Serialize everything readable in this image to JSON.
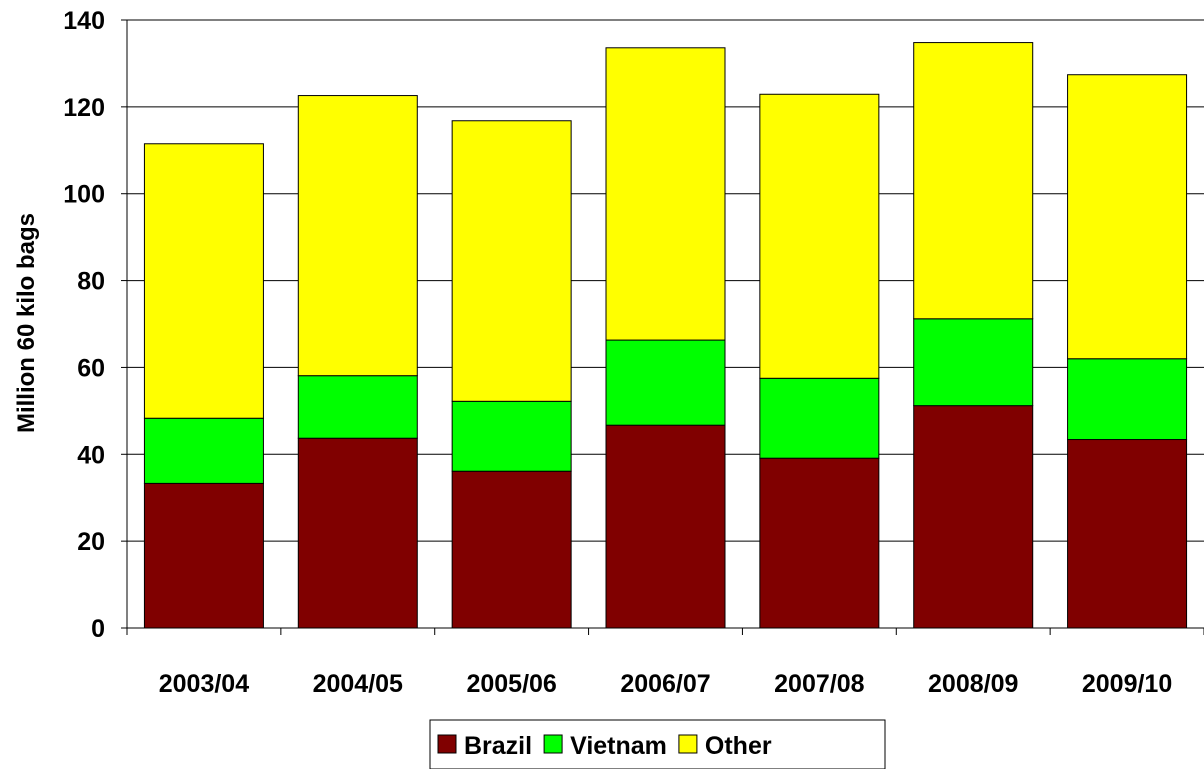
{
  "chart_data": {
    "type": "bar",
    "stacked": true,
    "title": "",
    "xlabel": "",
    "ylabel": "Million 60 kilo bags",
    "ylim": [
      0,
      140
    ],
    "yticks": [
      0,
      20,
      40,
      60,
      80,
      100,
      120,
      140
    ],
    "ytick_labels": [
      "0",
      "20",
      "40",
      "60",
      "80",
      "100",
      "120",
      "140"
    ],
    "grid": true,
    "legend_position": "bottom",
    "categories": [
      "2003/04",
      "2004/05",
      "2005/06",
      "2006/07",
      "2007/08",
      "2008/09",
      "2009/10"
    ],
    "series": [
      {
        "name": "Brazil",
        "color": "#800000",
        "values": [
          33.3,
          43.7,
          36.1,
          46.7,
          39.1,
          51.2,
          43.4
        ]
      },
      {
        "name": "Vietnam",
        "color": "#00ff00",
        "values": [
          15.0,
          14.4,
          16.1,
          19.6,
          18.4,
          20.0,
          18.6
        ]
      },
      {
        "name": "Other",
        "color": "#ffff00",
        "values": [
          63.2,
          64.5,
          64.6,
          67.3,
          65.4,
          63.6,
          65.4
        ]
      }
    ]
  }
}
